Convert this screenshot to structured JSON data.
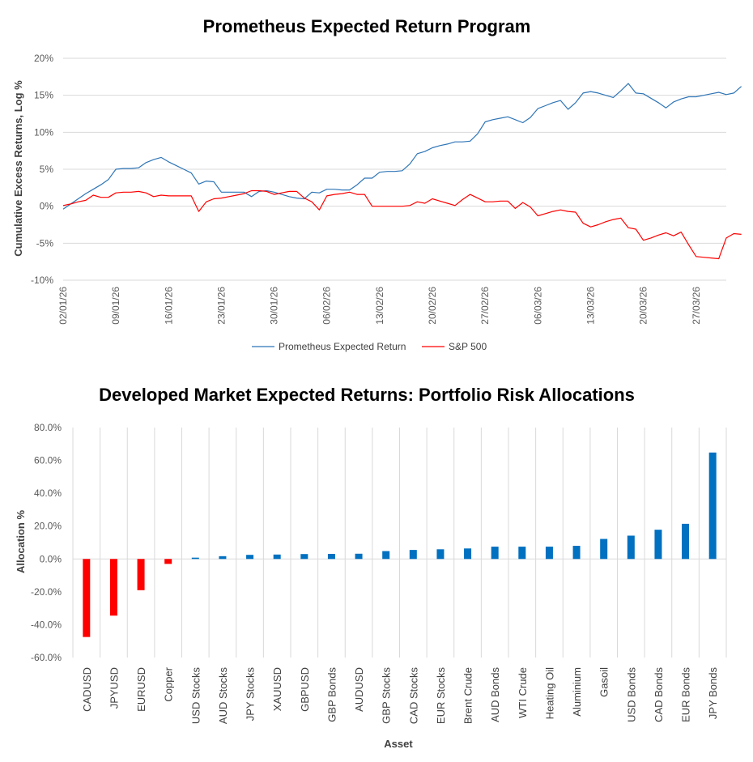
{
  "chart_data": [
    {
      "type": "line",
      "title": "Prometheus Expected Return Program",
      "ylabel": "Cumulative Excess Returns, Log %",
      "xlabel": "",
      "ylim": [
        -10,
        20
      ],
      "yticks": [
        -10,
        -5,
        0,
        5,
        10,
        15,
        20
      ],
      "ytick_labels": [
        "-10%",
        "-5%",
        "0%",
        "5%",
        "10%",
        "15%",
        "20%"
      ],
      "xlim": [
        0,
        88
      ],
      "xtick_positions": [
        0,
        7,
        14,
        21,
        28,
        35,
        42,
        49,
        56,
        63,
        70,
        77,
        84
      ],
      "xtick_labels": [
        "02/01/26",
        "09/01/26",
        "16/01/26",
        "23/01/26",
        "30/01/26",
        "06/02/26",
        "13/02/26",
        "20/02/26",
        "27/02/26",
        "06/03/26",
        "13/03/26",
        "20/03/26",
        "27/03/26"
      ],
      "legend_position": "bottom",
      "series": [
        {
          "name": "Prometheus Expected Return",
          "color": "#2E75B6",
          "points": [
            [
              0,
              -0.4
            ],
            [
              1,
              0.3
            ],
            [
              2,
              1.0
            ],
            [
              3,
              1.7
            ],
            [
              4,
              2.3
            ],
            [
              5,
              2.9
            ],
            [
              6,
              3.6
            ],
            [
              7,
              5.0
            ],
            [
              8,
              5.1
            ],
            [
              9,
              5.1
            ],
            [
              10,
              5.2
            ],
            [
              11,
              5.9
            ],
            [
              12,
              6.3
            ],
            [
              13,
              6.6
            ],
            [
              14,
              6.0
            ],
            [
              15,
              5.5
            ],
            [
              16,
              5.0
            ],
            [
              17,
              4.5
            ],
            [
              18,
              3.0
            ],
            [
              19,
              3.4
            ],
            [
              20,
              3.3
            ],
            [
              21,
              1.9
            ],
            [
              22,
              1.9
            ],
            [
              23,
              1.9
            ],
            [
              24,
              1.9
            ],
            [
              25,
              1.3
            ],
            [
              26,
              2.0
            ],
            [
              27,
              2.1
            ],
            [
              28,
              1.9
            ],
            [
              29,
              1.6
            ],
            [
              30,
              1.3
            ],
            [
              31,
              1.1
            ],
            [
              32,
              1.0
            ],
            [
              33,
              1.9
            ],
            [
              34,
              1.8
            ],
            [
              35,
              2.3
            ],
            [
              36,
              2.3
            ],
            [
              37,
              2.2
            ],
            [
              38,
              2.2
            ],
            [
              39,
              2.9
            ],
            [
              40,
              3.8
            ],
            [
              41,
              3.8
            ],
            [
              42,
              4.6
            ],
            [
              43,
              4.7
            ],
            [
              44,
              4.7
            ],
            [
              45,
              4.8
            ],
            [
              46,
              5.7
            ],
            [
              47,
              7.1
            ],
            [
              48,
              7.4
            ],
            [
              49,
              7.9
            ],
            [
              50,
              8.2
            ],
            [
              51,
              8.4
            ],
            [
              52,
              8.7
            ],
            [
              53,
              8.7
            ],
            [
              54,
              8.8
            ],
            [
              55,
              9.8
            ],
            [
              56,
              11.4
            ],
            [
              57,
              11.7
            ],
            [
              58,
              11.9
            ],
            [
              59,
              12.1
            ],
            [
              60,
              11.7
            ],
            [
              61,
              11.3
            ],
            [
              62,
              12.0
            ],
            [
              63,
              13.2
            ],
            [
              64,
              13.6
            ],
            [
              65,
              14.0
            ],
            [
              66,
              14.3
            ],
            [
              67,
              13.1
            ],
            [
              68,
              14.0
            ],
            [
              69,
              15.3
            ],
            [
              70,
              15.5
            ],
            [
              71,
              15.3
            ],
            [
              72,
              15.0
            ],
            [
              73,
              14.7
            ],
            [
              74,
              15.6
            ],
            [
              75,
              16.6
            ],
            [
              76,
              15.3
            ],
            [
              77,
              15.2
            ],
            [
              78,
              14.6
            ],
            [
              79,
              14.0
            ],
            [
              80,
              13.3
            ],
            [
              81,
              14.1
            ],
            [
              82,
              14.5
            ],
            [
              83,
              14.8
            ],
            [
              84,
              14.8
            ],
            [
              85,
              15.0
            ],
            [
              86,
              15.2
            ],
            [
              87,
              15.4
            ],
            [
              88,
              15.1
            ],
            [
              89,
              15.3
            ],
            [
              90,
              16.2
            ]
          ]
        },
        {
          "name": "S&P 500",
          "color": "#FF0000",
          "points": [
            [
              0,
              0.1
            ],
            [
              1,
              0.3
            ],
            [
              2,
              0.6
            ],
            [
              3,
              0.8
            ],
            [
              4,
              1.5
            ],
            [
              5,
              1.2
            ],
            [
              6,
              1.2
            ],
            [
              7,
              1.8
            ],
            [
              8,
              1.9
            ],
            [
              9,
              1.9
            ],
            [
              10,
              2.0
            ],
            [
              11,
              1.8
            ],
            [
              12,
              1.3
            ],
            [
              13,
              1.5
            ],
            [
              14,
              1.4
            ],
            [
              15,
              1.4
            ],
            [
              16,
              1.4
            ],
            [
              17,
              1.4
            ],
            [
              18,
              -0.7
            ],
            [
              19,
              0.6
            ],
            [
              20,
              1.0
            ],
            [
              21,
              1.1
            ],
            [
              22,
              1.3
            ],
            [
              23,
              1.5
            ],
            [
              24,
              1.7
            ],
            [
              25,
              2.1
            ],
            [
              26,
              2.1
            ],
            [
              27,
              2.0
            ],
            [
              28,
              1.6
            ],
            [
              29,
              1.8
            ],
            [
              30,
              2.0
            ],
            [
              31,
              2.0
            ],
            [
              32,
              1.1
            ],
            [
              33,
              0.6
            ],
            [
              34,
              -0.5
            ],
            [
              35,
              1.4
            ],
            [
              36,
              1.6
            ],
            [
              37,
              1.7
            ],
            [
              38,
              1.9
            ],
            [
              39,
              1.6
            ],
            [
              40,
              1.6
            ],
            [
              41,
              0.0
            ],
            [
              42,
              0.0
            ],
            [
              43,
              0.0
            ],
            [
              44,
              0.0
            ],
            [
              45,
              0.0
            ],
            [
              46,
              0.1
            ],
            [
              47,
              0.6
            ],
            [
              48,
              0.4
            ],
            [
              49,
              1.0
            ],
            [
              50,
              0.7
            ],
            [
              51,
              0.4
            ],
            [
              52,
              0.1
            ],
            [
              53,
              0.9
            ],
            [
              54,
              1.6
            ],
            [
              55,
              1.1
            ],
            [
              56,
              0.6
            ],
            [
              57,
              0.6
            ],
            [
              58,
              0.7
            ],
            [
              59,
              0.7
            ],
            [
              60,
              -0.3
            ],
            [
              61,
              0.5
            ],
            [
              62,
              -0.1
            ],
            [
              63,
              -1.3
            ],
            [
              64,
              -1.0
            ],
            [
              65,
              -0.7
            ],
            [
              66,
              -0.5
            ],
            [
              67,
              -0.7
            ],
            [
              68,
              -0.8
            ],
            [
              69,
              -2.3
            ],
            [
              70,
              -2.8
            ],
            [
              71,
              -2.5
            ],
            [
              72,
              -2.1
            ],
            [
              73,
              -1.8
            ],
            [
              74,
              -1.6
            ],
            [
              75,
              -2.9
            ],
            [
              76,
              -3.1
            ],
            [
              77,
              -4.6
            ],
            [
              78,
              -4.3
            ],
            [
              79,
              -3.9
            ],
            [
              80,
              -3.6
            ],
            [
              81,
              -4.0
            ],
            [
              82,
              -3.5
            ],
            [
              83,
              -5.2
            ],
            [
              84,
              -6.8
            ],
            [
              85,
              -6.9
            ],
            [
              86,
              -7.0
            ],
            [
              87,
              -7.1
            ],
            [
              88,
              -4.3
            ],
            [
              89,
              -3.7
            ],
            [
              90,
              -3.8
            ]
          ]
        }
      ]
    },
    {
      "type": "bar",
      "title": "Developed Market Expected Returns: Portfolio Risk Allocations",
      "xlabel": "Asset",
      "ylabel": "Allocation %",
      "ylim": [
        -60,
        80
      ],
      "yticks": [
        -60,
        -40,
        -20,
        0,
        20,
        40,
        60,
        80
      ],
      "ytick_labels": [
        "-60.0%",
        "-40.0%",
        "-20.0%",
        "0.0%",
        "20.0%",
        "40.0%",
        "60.0%",
        "80.0%"
      ],
      "positive_color": "#0070C0",
      "negative_color": "#FF0000",
      "categories": [
        "CADUSD",
        "JPYUSD",
        "EURUSD",
        "Copper",
        "USD Stocks",
        "AUD Stocks",
        "JPY Stocks",
        "XAUUSD",
        "GBPUSD",
        "GBP Bonds",
        "AUDUSD",
        "GBP Stocks",
        "CAD Stocks",
        "EUR Stocks",
        "Brent Crude",
        "AUD Bonds",
        "WTI Crude",
        "Heating Oil",
        "Aluminium",
        "Gasoil",
        "USD Bonds",
        "CAD Bonds",
        "EUR Bonds",
        "JPY Bonds"
      ],
      "values": [
        -47.5,
        -34.5,
        -19,
        -3,
        0.8,
        1.7,
        2.5,
        2.7,
        3.0,
        3.1,
        3.2,
        4.8,
        5.5,
        5.9,
        6.4,
        7.5,
        7.5,
        7.5,
        8.0,
        12.2,
        14.2,
        17.8,
        21.4,
        64.8
      ]
    }
  ]
}
